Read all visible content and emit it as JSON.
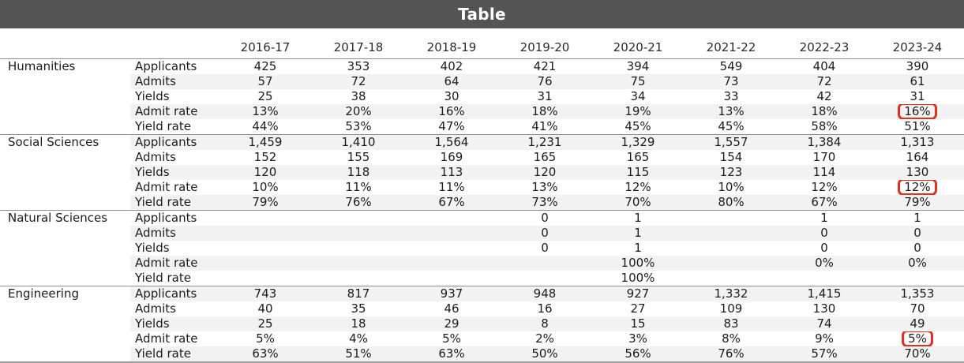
{
  "title": "Table",
  "colors": {
    "title_bar_bg": "#545454",
    "title_text": "#ffffff",
    "row_stripe": "#f2f2f2",
    "separator_line": "#8f8f8f",
    "highlight_box": "#e0301e"
  },
  "chart_data": {
    "type": "table",
    "title": "Table",
    "columns": [
      "2016-17",
      "2017-18",
      "2018-19",
      "2019-20",
      "2020-21",
      "2021-22",
      "2022-23",
      "2023-24"
    ],
    "metrics": [
      "Applicants",
      "Admits",
      "Yields",
      "Admit rate",
      "Yield rate"
    ],
    "layout_hints": {
      "striped_rows": true,
      "group_separator_lines": true,
      "highlighted_column": "2023-24"
    },
    "groups": [
      {
        "name": "Humanities",
        "rows": [
          {
            "metric": "Applicants",
            "values": [
              "425",
              "353",
              "402",
              "421",
              "394",
              "549",
              "404",
              "390"
            ]
          },
          {
            "metric": "Admits",
            "values": [
              "57",
              "72",
              "64",
              "76",
              "75",
              "73",
              "72",
              "61"
            ]
          },
          {
            "metric": "Yields",
            "values": [
              "25",
              "38",
              "30",
              "31",
              "34",
              "33",
              "42",
              "31"
            ]
          },
          {
            "metric": "Admit rate",
            "values": [
              "13%",
              "20%",
              "16%",
              "18%",
              "19%",
              "13%",
              "18%",
              "16%"
            ],
            "highlight_col": 7
          },
          {
            "metric": "Yield rate",
            "values": [
              "44%",
              "53%",
              "47%",
              "41%",
              "45%",
              "45%",
              "58%",
              "51%"
            ]
          }
        ]
      },
      {
        "name": "Social Sciences",
        "rows": [
          {
            "metric": "Applicants",
            "values": [
              "1,459",
              "1,410",
              "1,564",
              "1,231",
              "1,329",
              "1,557",
              "1,384",
              "1,313"
            ]
          },
          {
            "metric": "Admits",
            "values": [
              "152",
              "155",
              "169",
              "165",
              "165",
              "154",
              "170",
              "164"
            ]
          },
          {
            "metric": "Yields",
            "values": [
              "120",
              "118",
              "113",
              "120",
              "115",
              "123",
              "114",
              "130"
            ]
          },
          {
            "metric": "Admit rate",
            "values": [
              "10%",
              "11%",
              "11%",
              "13%",
              "12%",
              "10%",
              "12%",
              "12%"
            ],
            "highlight_col": 7
          },
          {
            "metric": "Yield rate",
            "values": [
              "79%",
              "76%",
              "67%",
              "73%",
              "70%",
              "80%",
              "67%",
              "79%"
            ]
          }
        ]
      },
      {
        "name": "Natural Sciences",
        "rows": [
          {
            "metric": "Applicants",
            "values": [
              "",
              "",
              "",
              "0",
              "1",
              "",
              "1",
              "1"
            ]
          },
          {
            "metric": "Admits",
            "values": [
              "",
              "",
              "",
              "0",
              "1",
              "",
              "0",
              "0"
            ]
          },
          {
            "metric": "Yields",
            "values": [
              "",
              "",
              "",
              "0",
              "1",
              "",
              "0",
              "0"
            ]
          },
          {
            "metric": "Admit rate",
            "values": [
              "",
              "",
              "",
              "",
              "100%",
              "",
              "0%",
              "0%"
            ]
          },
          {
            "metric": "Yield rate",
            "values": [
              "",
              "",
              "",
              "",
              "100%",
              "",
              "",
              ""
            ]
          }
        ]
      },
      {
        "name": "Engineering",
        "rows": [
          {
            "metric": "Applicants",
            "values": [
              "743",
              "817",
              "937",
              "948",
              "927",
              "1,332",
              "1,415",
              "1,353"
            ]
          },
          {
            "metric": "Admits",
            "values": [
              "40",
              "35",
              "46",
              "16",
              "27",
              "109",
              "130",
              "70"
            ]
          },
          {
            "metric": "Yields",
            "values": [
              "25",
              "18",
              "29",
              "8",
              "15",
              "83",
              "74",
              "49"
            ]
          },
          {
            "metric": "Admit rate",
            "values": [
              "5%",
              "4%",
              "5%",
              "2%",
              "3%",
              "8%",
              "9%",
              "5%"
            ],
            "highlight_col": 7
          },
          {
            "metric": "Yield rate",
            "values": [
              "63%",
              "51%",
              "63%",
              "50%",
              "56%",
              "76%",
              "57%",
              "70%"
            ]
          }
        ]
      }
    ]
  }
}
